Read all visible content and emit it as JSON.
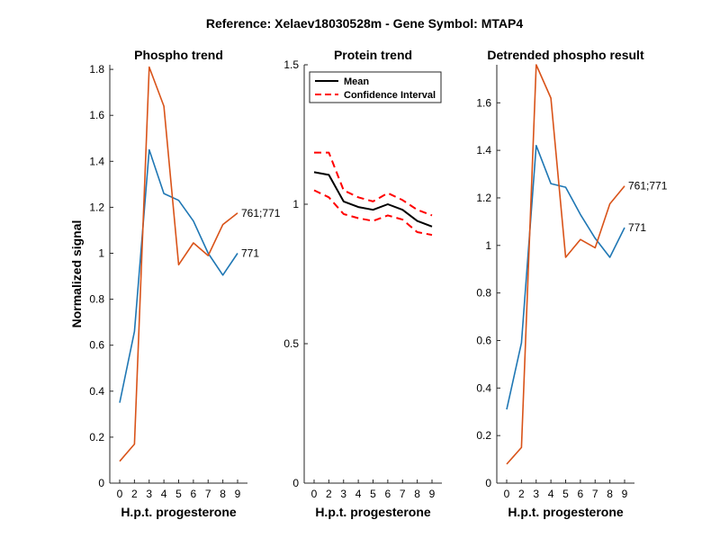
{
  "title": "Reference:  Xelaev18030528m - Gene Symbol:  MTAP4",
  "colors": {
    "blue": "#1f77b4",
    "orange": "#d95319",
    "black": "#000000",
    "red": "#ff0000"
  },
  "chart_data": [
    {
      "type": "line",
      "title": "Phospho trend",
      "xlabel": "H.p.t. progesterone",
      "ylabel": "Normalized signal",
      "x": [
        0,
        2,
        3,
        4,
        5,
        6,
        7,
        8,
        9
      ],
      "xticks": [
        "0",
        "2",
        "3",
        "4",
        "5",
        "6",
        "7",
        "8",
        "9"
      ],
      "ylim": [
        0,
        1.82
      ],
      "yticks": [
        "0",
        "0.2",
        "0.4",
        "0.6",
        "0.8",
        "1",
        "1.2",
        "1.4",
        "1.6",
        "1.8"
      ],
      "series": [
        {
          "name": "771",
          "color": "blue",
          "values": [
            0.35,
            0.66,
            1.45,
            1.26,
            1.23,
            1.14,
            1.0,
            0.905,
            1.0
          ]
        },
        {
          "name": "761;771",
          "color": "orange",
          "values": [
            0.095,
            0.17,
            1.81,
            1.64,
            0.95,
            1.045,
            0.99,
            1.125,
            1.175
          ]
        }
      ]
    },
    {
      "type": "line",
      "title": "Protein trend",
      "xlabel": "H.p.t. progesterone",
      "ylabel": "",
      "x": [
        0,
        2,
        3,
        4,
        5,
        6,
        7,
        8,
        9
      ],
      "xticks": [
        "0",
        "2",
        "3",
        "4",
        "5",
        "6",
        "7",
        "8",
        "9"
      ],
      "ylim": [
        0,
        1.5
      ],
      "yticks": [
        "0",
        "0.5",
        "1",
        "1.5"
      ],
      "legend": {
        "position": "top",
        "entries": [
          "Mean",
          "Confidence Interval"
        ]
      },
      "series": [
        {
          "name": "Mean",
          "color": "black",
          "style": "solid",
          "values": [
            1.115,
            1.105,
            1.01,
            0.99,
            0.98,
            1.0,
            0.98,
            0.94,
            0.92
          ]
        },
        {
          "name": "Confidence Interval",
          "color": "red",
          "style": "dashed",
          "values": [
            1.185,
            1.185,
            1.05,
            1.025,
            1.01,
            1.04,
            1.015,
            0.98,
            0.96
          ]
        },
        {
          "name": "Confidence Interval",
          "color": "red",
          "style": "dashed",
          "values": [
            1.05,
            1.025,
            0.965,
            0.95,
            0.94,
            0.96,
            0.945,
            0.9,
            0.89
          ]
        }
      ]
    },
    {
      "type": "line",
      "title": "Detrended phospho result",
      "xlabel": "H.p.t. progesterone",
      "ylabel": "",
      "x": [
        0,
        2,
        3,
        4,
        5,
        6,
        7,
        8,
        9
      ],
      "xticks": [
        "0",
        "2",
        "3",
        "4",
        "5",
        "6",
        "7",
        "8",
        "9"
      ],
      "ylim": [
        0,
        1.76
      ],
      "yticks": [
        "0",
        "0.2",
        "0.4",
        "0.6",
        "0.8",
        "1",
        "1.2",
        "1.4",
        "1.6"
      ],
      "series": [
        {
          "name": "771",
          "color": "blue",
          "values": [
            0.31,
            0.59,
            1.42,
            1.26,
            1.245,
            1.13,
            1.03,
            0.95,
            1.075
          ]
        },
        {
          "name": "761;771",
          "color": "orange",
          "values": [
            0.08,
            0.15,
            1.76,
            1.62,
            0.95,
            1.025,
            0.99,
            1.175,
            1.25
          ]
        }
      ]
    }
  ]
}
